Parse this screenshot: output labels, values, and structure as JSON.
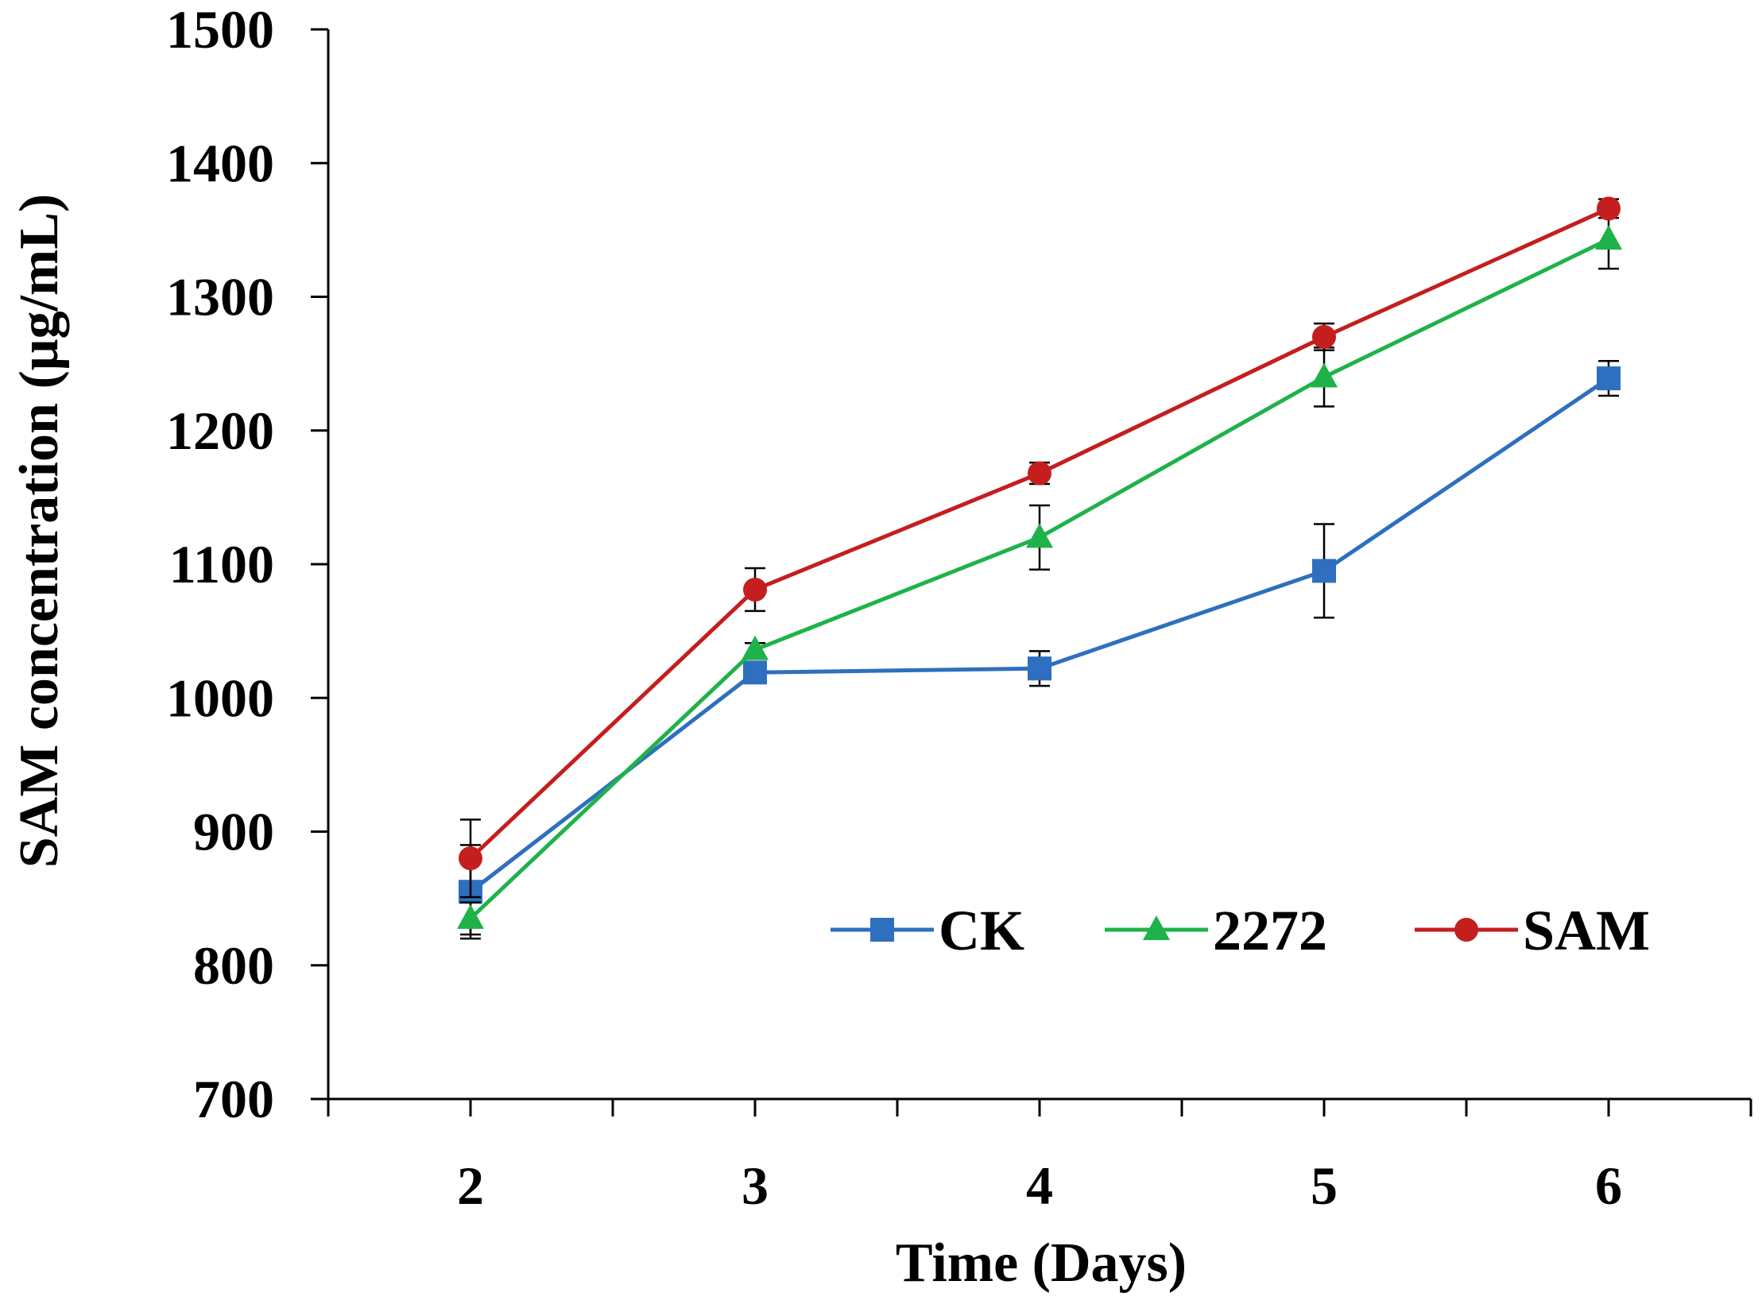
{
  "chart_data": {
    "type": "line",
    "title": "",
    "xlabel": "Time (Days)",
    "ylabel": "SAM concentration (μg/mL)",
    "x": [
      2,
      3,
      4,
      5,
      6
    ],
    "x_tick_labels": [
      "2",
      "3",
      "4",
      "5",
      "6"
    ],
    "xlim": [
      1.5,
      6.5
    ],
    "ylim": [
      700,
      1500
    ],
    "y_ticks": [
      700,
      800,
      900,
      1000,
      1100,
      1200,
      1300,
      1400,
      1500
    ],
    "y_tick_labels": [
      "700",
      "800",
      "900",
      "1000",
      "1100",
      "1200",
      "1300",
      "1400",
      "1500"
    ],
    "grid": false,
    "legend_position": "bottom-right",
    "series": [
      {
        "name": "CK",
        "color": "#2e6fbf",
        "marker": "square",
        "values": [
          855,
          1019,
          1022,
          1095,
          1239
        ],
        "errors": [
          35,
          5,
          13,
          35,
          13
        ]
      },
      {
        "name": "2272",
        "color": "#1fb24a",
        "marker": "triangle",
        "values": [
          835,
          1036,
          1120,
          1240,
          1343
        ],
        "errors": [
          12,
          5,
          24,
          22,
          22
        ]
      },
      {
        "name": "SAM",
        "color": "#c41e1e",
        "marker": "circle",
        "values": [
          880,
          1081,
          1168,
          1270,
          1366
        ],
        "errors": [
          29,
          16,
          8,
          10,
          7
        ]
      }
    ]
  }
}
